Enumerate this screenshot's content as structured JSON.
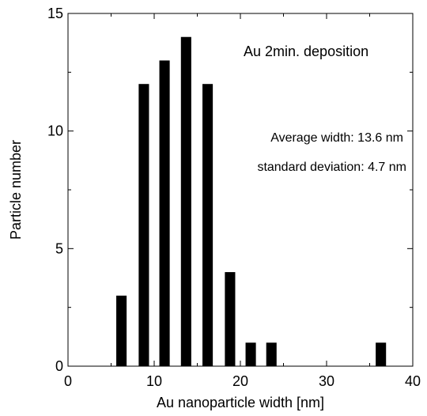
{
  "chart_data": {
    "type": "bar",
    "title": "",
    "xlabel": "Au nanoparticle width [nm]",
    "ylabel": "Particle number",
    "xlim": [
      0,
      40
    ],
    "ylim": [
      0,
      15
    ],
    "xticks": [
      0,
      10,
      20,
      30,
      40
    ],
    "yticks": [
      0,
      5,
      10,
      15
    ],
    "x": [
      6.2,
      8.8,
      11.2,
      13.7,
      16.2,
      18.8,
      21.2,
      23.6,
      36.3
    ],
    "values": [
      3,
      12,
      13,
      14,
      12,
      4,
      1,
      1,
      1
    ],
    "bar_width": 1.2,
    "grid": false,
    "bar_color": "#000000",
    "annotations": [
      {
        "text": "Au 2min. deposition"
      },
      {
        "text": "Average width: 13.6 nm"
      },
      {
        "text": "standard deviation: 4.7 nm"
      }
    ]
  }
}
